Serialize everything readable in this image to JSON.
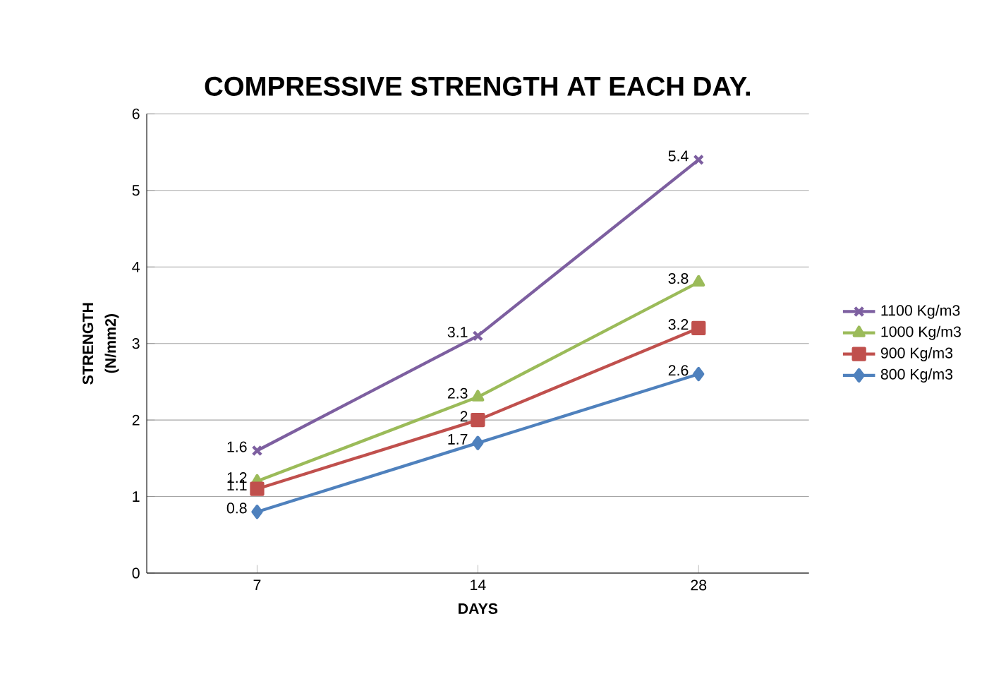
{
  "chart_data": {
    "type": "line",
    "title": "COMPRESSIVE STRENGTH AT EACH DAY.",
    "xlabel": "DAYS",
    "ylabel": "STRENGTH (N/mm2)",
    "categories": [
      "7",
      "14",
      "28"
    ],
    "ylim": [
      0,
      6
    ],
    "yticks": [
      0,
      1,
      2,
      3,
      4,
      5,
      6
    ],
    "grid": "y",
    "legend": "right",
    "data_labels": true,
    "series": [
      {
        "name": "1100 Kg/m3",
        "color": "#7d5fa0",
        "marker": "cross",
        "values": [
          1.6,
          3.1,
          5.4
        ]
      },
      {
        "name": "1000 Kg/m3",
        "color": "#9bbb59",
        "marker": "triangle",
        "values": [
          1.2,
          2.3,
          3.8
        ]
      },
      {
        "name": "900 Kg/m3",
        "color": "#c0504d",
        "marker": "square",
        "values": [
          1.1,
          2,
          3.2
        ]
      },
      {
        "name": "800 Kg/m3",
        "color": "#4f81bd",
        "marker": "diamond",
        "values": [
          0.8,
          1.7,
          2.6
        ]
      }
    ]
  }
}
